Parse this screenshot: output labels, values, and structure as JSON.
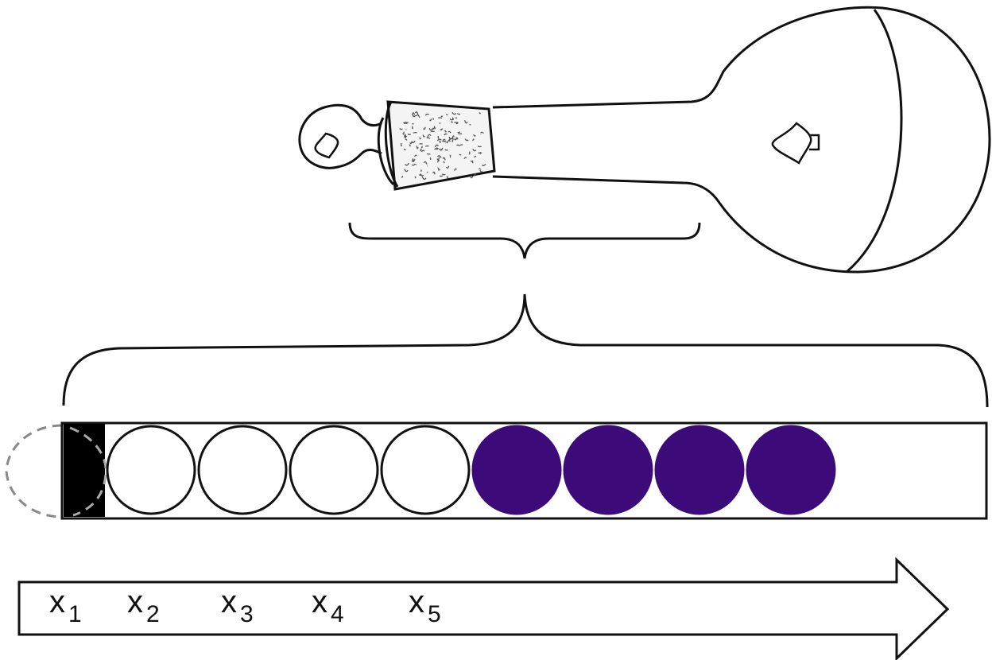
{
  "colors": {
    "stroke": "#111111",
    "filled_ball": "#3d0a7a",
    "empty_ball": "#ffffff",
    "plug": "#000000",
    "ghost_outline": "#888888",
    "cork_texture": "#555555"
  },
  "flask": {
    "symbol": "♤"
  },
  "tube": {
    "balls": [
      {
        "state": "empty"
      },
      {
        "state": "empty"
      },
      {
        "state": "empty"
      },
      {
        "state": "empty"
      },
      {
        "state": "filled"
      },
      {
        "state": "filled"
      },
      {
        "state": "filled"
      },
      {
        "state": "filled"
      }
    ]
  },
  "axis": {
    "labels": [
      {
        "base": "x",
        "sub": "1"
      },
      {
        "base": "x",
        "sub": "2"
      },
      {
        "base": "x",
        "sub": "3"
      },
      {
        "base": "x",
        "sub": "4"
      },
      {
        "base": "x",
        "sub": "5"
      }
    ]
  }
}
